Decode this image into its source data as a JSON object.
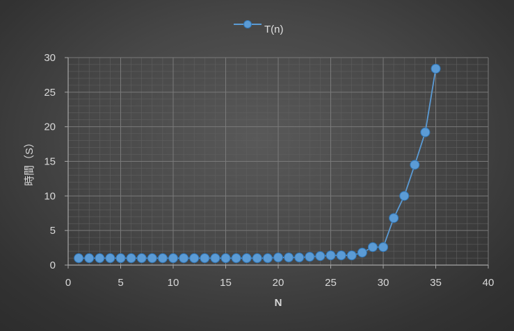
{
  "chart_data": {
    "type": "line",
    "title": "",
    "xlabel": "N",
    "ylabel": "時間（S）",
    "xlim": [
      0,
      40
    ],
    "ylim": [
      0,
      30
    ],
    "xticks": [
      0,
      5,
      10,
      15,
      20,
      25,
      30,
      35,
      40
    ],
    "yticks": [
      0,
      5,
      10,
      15,
      20,
      25,
      30
    ],
    "grid": true,
    "minor_grid": true,
    "legend_position": "top",
    "colors": {
      "series": "#5b9bd5",
      "series_line": "#5b9bd5",
      "series_edge": "#2e75b6",
      "major_grid": "#7a7a7a",
      "minor_grid": "#5f5f5f",
      "text": "#d9d9d9"
    },
    "series": [
      {
        "name": "T(n)",
        "x": [
          1,
          2,
          3,
          4,
          5,
          6,
          7,
          8,
          9,
          10,
          11,
          12,
          13,
          14,
          15,
          16,
          17,
          18,
          19,
          20,
          21,
          22,
          23,
          24,
          25,
          26,
          27,
          28,
          29,
          30,
          31,
          32,
          33,
          34,
          35
        ],
        "values": [
          1,
          1,
          1,
          1,
          1,
          1,
          1,
          1,
          1,
          1,
          1,
          1,
          1,
          1,
          1,
          1,
          1,
          1,
          1,
          1.1,
          1.1,
          1.1,
          1.2,
          1.3,
          1.4,
          1.4,
          1.4,
          1.8,
          2.6,
          2.6,
          6.8,
          10,
          14.5,
          19.2,
          28.4
        ]
      }
    ]
  }
}
